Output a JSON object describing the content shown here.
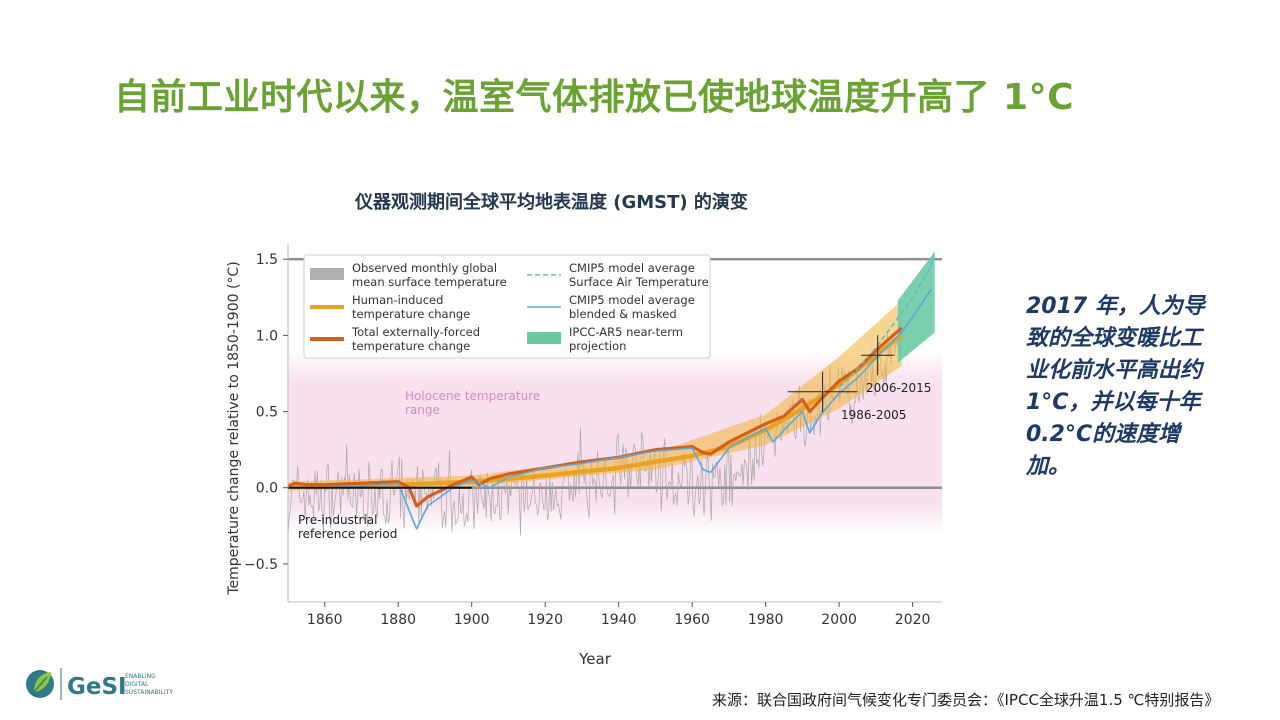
{
  "slide": {
    "title": "自前工业时代以来，温室气体排放已使地球温度升高了 1°C",
    "side_note": "2017 年，人为导致的全球变暖比工业化前水平高出约 1°C，并以每十年 0.2°C的速度增加。",
    "source": "来源：联合国政府间气候变化专门委员会：《IPCC全球升温1.5 ℃特别报告》"
  },
  "logo": {
    "name": "GeSI",
    "tagline": [
      "ENABLING",
      "DIGITAL",
      "SUSTAINABILITY"
    ]
  },
  "chart_data": {
    "type": "line",
    "title": "仪器观测期间全球平均地表温度 (GMST) 的演变",
    "xlabel": "Year",
    "ylabel": "Temperature change relative to 1850-1900 (°C)",
    "xlim": [
      1850,
      2028
    ],
    "ylim": [
      -0.75,
      1.6
    ],
    "xticks": [
      1860,
      1880,
      1900,
      1920,
      1940,
      1960,
      1980,
      2000,
      2020
    ],
    "yticks": [
      -0.5,
      0.0,
      0.5,
      1.0,
      1.5
    ],
    "ytick_labels": [
      "−0.5",
      "0.0",
      "0.5",
      "1.0",
      "1.5"
    ],
    "grid": false,
    "legend_position": "top-left",
    "legend": [
      {
        "label": [
          "Observed monthly global",
          "mean surface temperature"
        ],
        "style": "gray-band",
        "color": "#b0b0b0"
      },
      {
        "label": [
          "Human-induced",
          "temperature change"
        ],
        "style": "thick-line",
        "color": "#e8a324"
      },
      {
        "label": [
          "Total externally-forced",
          "temperature change"
        ],
        "style": "thick-line",
        "color": "#d35f1b"
      },
      {
        "label": [
          "CMIP5 model average",
          "Surface Air Temperature"
        ],
        "style": "dashed-line",
        "color": "#5bbcd0"
      },
      {
        "label": [
          "CMIP5 model average",
          "blended & masked"
        ],
        "style": "line",
        "color": "#5aa8dc"
      },
      {
        "label": [
          "IPCC-AR5 near-term",
          "projection"
        ],
        "style": "band",
        "color": "#6ccaa3"
      }
    ],
    "annotations": [
      {
        "text": [
          "Holocene temperature",
          "range"
        ],
        "color": "#d98ab9"
      },
      {
        "text": [
          "Pre-industrial",
          "reference period"
        ],
        "color": "#222222"
      },
      {
        "text": [
          "1986-2005"
        ],
        "color": "#222222"
      },
      {
        "text": [
          "2006-2015"
        ],
        "color": "#222222"
      }
    ],
    "holocene_range": [
      -0.3,
      0.9
    ],
    "reference_lines": [
      0.0,
      1.5
    ],
    "preindustrial_period": {
      "x": [
        1850,
        1900
      ],
      "y": 0.0
    },
    "period_means": [
      {
        "label": "1986-2005",
        "x": [
          1986,
          2005
        ],
        "y": 0.63
      },
      {
        "label": "2006-2015",
        "x": [
          2006,
          2015
        ],
        "y": 0.87
      }
    ],
    "series": [
      {
        "name": "Human-induced temperature change",
        "x": [
          1850,
          1880,
          1900,
          1920,
          1940,
          1950,
          1960,
          1970,
          1980,
          1990,
          2000,
          2010,
          2017
        ],
        "values": [
          0.01,
          0.02,
          0.04,
          0.08,
          0.13,
          0.17,
          0.21,
          0.27,
          0.38,
          0.52,
          0.68,
          0.87,
          1.0
        ]
      },
      {
        "name": "Total externally-forced temperature change",
        "x": [
          1850,
          1852,
          1855,
          1860,
          1870,
          1880,
          1883,
          1885,
          1888,
          1895,
          1900,
          1902,
          1905,
          1910,
          1920,
          1930,
          1940,
          1950,
          1960,
          1963,
          1965,
          1970,
          1980,
          1985,
          1990,
          1992,
          1995,
          2000,
          2005,
          2010,
          2017
        ],
        "values": [
          0.01,
          0.03,
          0.02,
          0.02,
          0.03,
          0.04,
          0.0,
          -0.12,
          -0.06,
          0.02,
          0.07,
          0.02,
          0.06,
          0.09,
          0.13,
          0.17,
          0.2,
          0.25,
          0.27,
          0.23,
          0.22,
          0.3,
          0.42,
          0.47,
          0.58,
          0.5,
          0.58,
          0.7,
          0.78,
          0.9,
          1.05
        ]
      },
      {
        "name": "CMIP5 model average blended & masked",
        "x": [
          1850,
          1860,
          1870,
          1880,
          1883,
          1885,
          1888,
          1895,
          1900,
          1905,
          1910,
          1920,
          1930,
          1940,
          1950,
          1960,
          1963,
          1965,
          1970,
          1980,
          1982,
          1985,
          1990,
          1992,
          1995,
          2000,
          2005,
          2010,
          2017,
          2020,
          2025
        ],
        "values": [
          0.0,
          0.0,
          0.01,
          0.03,
          -0.15,
          -0.27,
          -0.12,
          0.0,
          0.05,
          0.0,
          0.07,
          0.13,
          0.16,
          0.2,
          0.24,
          0.26,
          0.12,
          0.1,
          0.26,
          0.39,
          0.3,
          0.38,
          0.5,
          0.36,
          0.48,
          0.62,
          0.72,
          0.85,
          1.02,
          1.12,
          1.3
        ]
      },
      {
        "name": "CMIP5 model average Surface Air Temperature",
        "x": [
          2000,
          2005,
          2010,
          2015,
          2020,
          2025,
          2026
        ],
        "values": [
          0.66,
          0.78,
          0.92,
          1.08,
          1.25,
          1.45,
          1.55
        ]
      }
    ],
    "bands": [
      {
        "name": "Human-induced uncertainty range",
        "x": [
          1850,
          1900,
          1950,
          1980,
          2000,
          2017
        ],
        "lower": [
          -0.02,
          0.01,
          0.12,
          0.28,
          0.52,
          0.8
        ],
        "upper": [
          0.04,
          0.08,
          0.23,
          0.48,
          0.86,
          1.23
        ]
      },
      {
        "name": "IPCC-AR5 near-term projection",
        "x": [
          2016,
          2026
        ],
        "lower": [
          0.82,
          1.02
        ],
        "upper": [
          1.23,
          1.55
        ]
      }
    ],
    "observed": {
      "name": "Observed monthly global mean surface temperature",
      "x_start": 1850,
      "x_end": 2017,
      "step_years": 0.333,
      "trend_x": [
        1850,
        1880,
        1900,
        1920,
        1940,
        1950,
        1960,
        1970,
        1980,
        1990,
        2000,
        2010,
        2017
      ],
      "trend_y": [
        -0.05,
        -0.05,
        -0.1,
        -0.05,
        0.15,
        0.1,
        0.05,
        0.05,
        0.3,
        0.45,
        0.58,
        0.75,
        0.98
      ],
      "noise_amplitude": 0.2,
      "max": 1.58,
      "min": -0.72
    }
  }
}
